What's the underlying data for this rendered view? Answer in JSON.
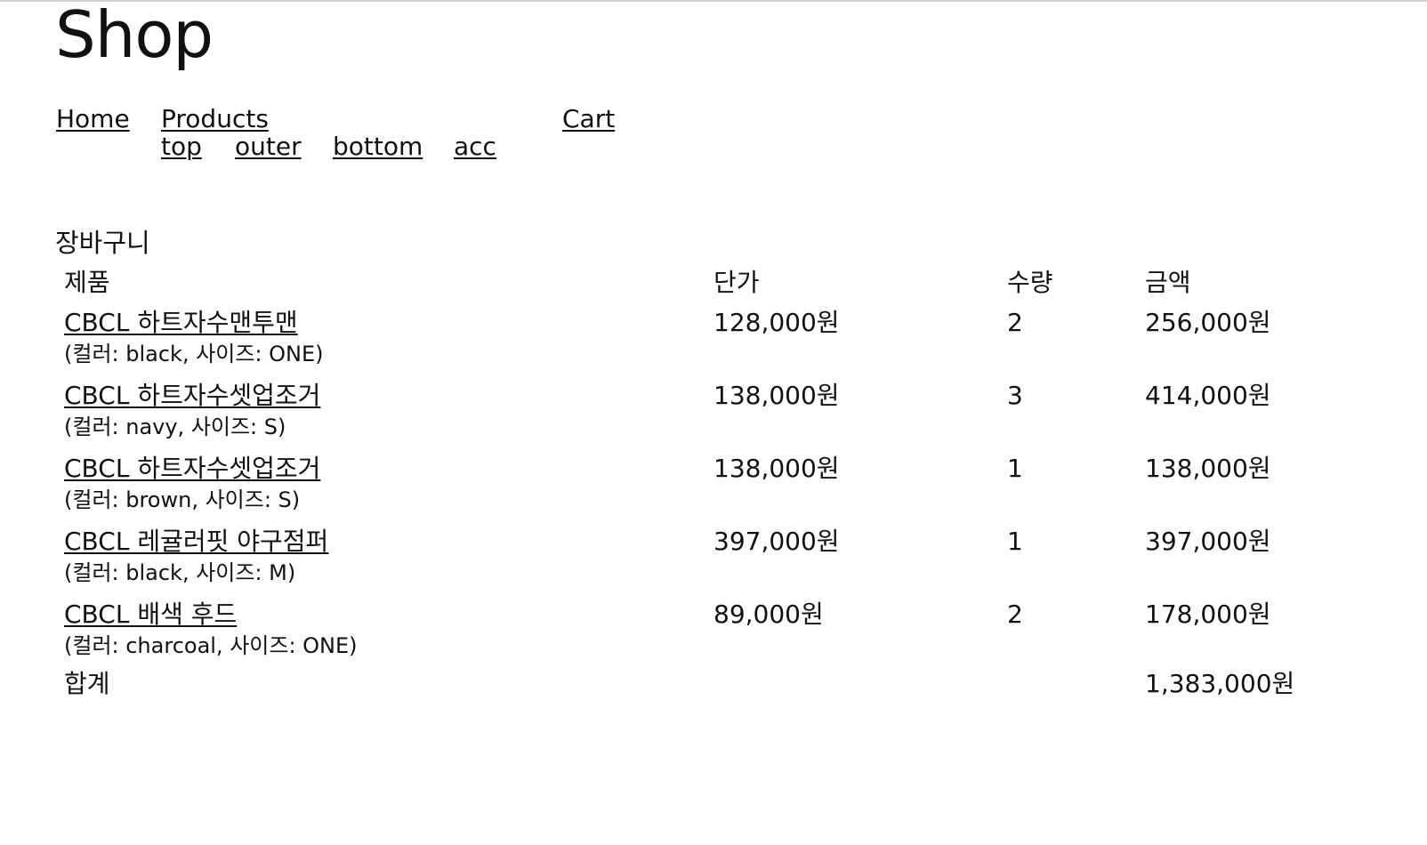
{
  "site": {
    "title": "Shop"
  },
  "nav": {
    "home": "Home",
    "products": "Products",
    "cart": "Cart",
    "categories": [
      "top",
      "outer",
      "bottom",
      "acc"
    ]
  },
  "cart": {
    "heading": "장바구니",
    "columns": {
      "product": "제품",
      "price": "단가",
      "quantity": "수량",
      "amount": "금액"
    },
    "items": [
      {
        "name": "CBCL 하트자수맨투맨",
        "option": "(컬러: black, 사이즈: ONE)",
        "price": "128,000원",
        "quantity": "2",
        "amount": "256,000원"
      },
      {
        "name": "CBCL 하트자수셋업조거",
        "option": "(컬러: navy, 사이즈: S)",
        "price": "138,000원",
        "quantity": "3",
        "amount": "414,000원"
      },
      {
        "name": "CBCL 하트자수셋업조거",
        "option": "(컬러: brown, 사이즈: S)",
        "price": "138,000원",
        "quantity": "1",
        "amount": "138,000원"
      },
      {
        "name": "CBCL 레귤러핏 야구점퍼",
        "option": "(컬러: black, 사이즈: M)",
        "price": "397,000원",
        "quantity": "1",
        "amount": "397,000원"
      },
      {
        "name": "CBCL 배색 후드",
        "option": "(컬러: charcoal, 사이즈: ONE)",
        "price": "89,000원",
        "quantity": "2",
        "amount": "178,000원"
      }
    ],
    "total": {
      "label": "합계",
      "amount": "1,383,000원"
    }
  }
}
